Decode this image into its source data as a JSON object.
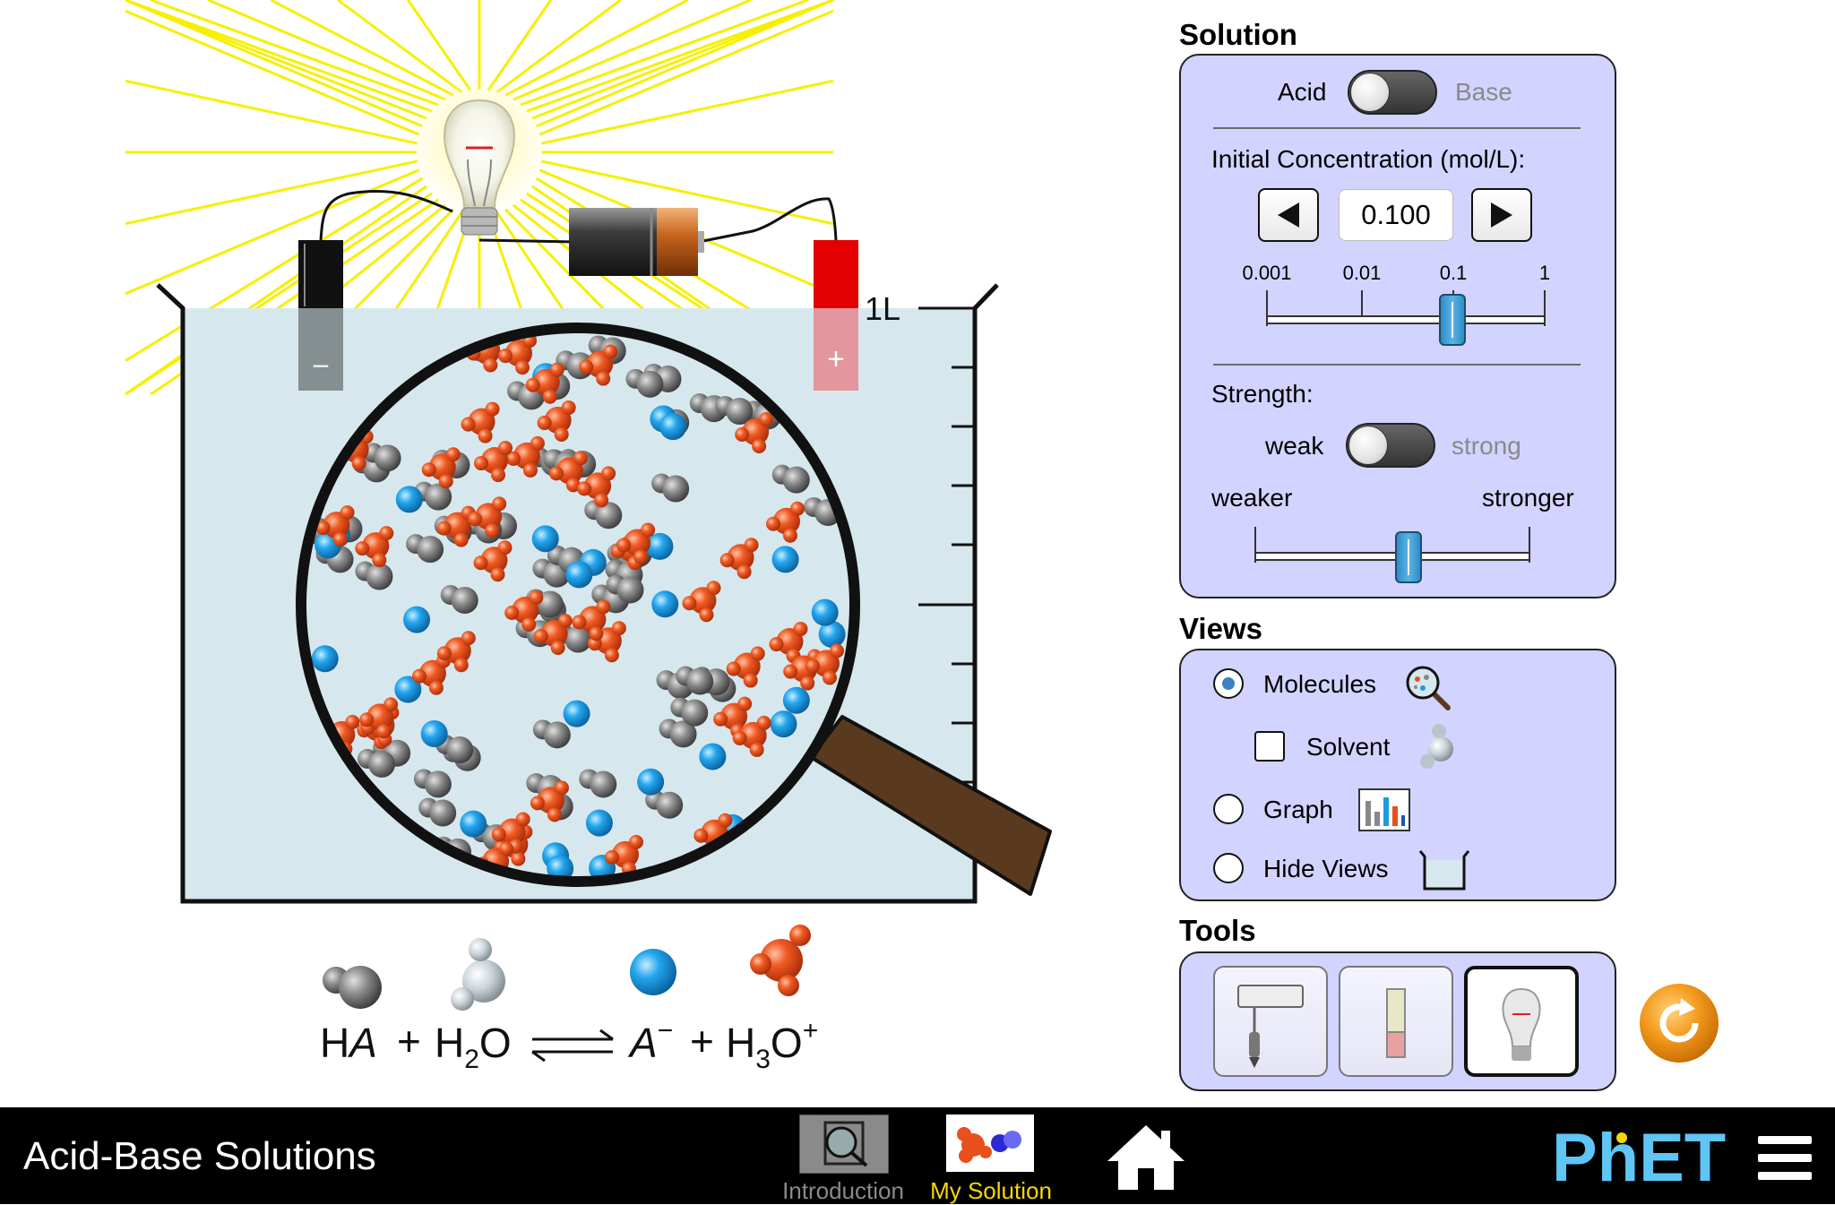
{
  "app": {
    "title": "Acid-Base Solutions",
    "brand": "PhET"
  },
  "beaker": {
    "volume_label": "1L",
    "neg_label": "−",
    "pos_label": "+"
  },
  "equation": {
    "reactant1": "HA",
    "plus1": "+",
    "reactant2": "H2O",
    "product1": "A−",
    "plus2": "+",
    "product2": "H3O+"
  },
  "solution": {
    "title": "Solution",
    "type_toggle": {
      "left": "Acid",
      "right": "Base",
      "value": "Acid"
    },
    "concentration": {
      "label": "Initial Concentration (mol/L):",
      "value": "0.100",
      "ticks": [
        "0.001",
        "0.01",
        "0.1",
        "1"
      ],
      "slider_fraction": 0.667
    },
    "strength": {
      "label": "Strength:",
      "toggle": {
        "left": "weak",
        "right": "strong",
        "value": "weak"
      },
      "min_label": "weaker",
      "max_label": "stronger",
      "slider_fraction": 0.56
    }
  },
  "views": {
    "title": "Views",
    "molecules": {
      "label": "Molecules",
      "selected": true
    },
    "solvent": {
      "label": "Solvent",
      "checked": false
    },
    "graph": {
      "label": "Graph",
      "selected": false
    },
    "hide_views": {
      "label": "Hide Views",
      "selected": false
    }
  },
  "tools": {
    "title": "Tools",
    "items": [
      {
        "name": "pH meter",
        "icon": "ph-meter-icon",
        "selected": false
      },
      {
        "name": "pH paper",
        "icon": "ph-paper-icon",
        "selected": false
      },
      {
        "name": "conductivity tester",
        "icon": "light-bulb-icon",
        "selected": true
      }
    ]
  },
  "nav": {
    "tabs": [
      {
        "label": "Introduction",
        "active": false
      },
      {
        "label": "My Solution",
        "active": true
      }
    ]
  },
  "colors": {
    "panel": "#d3d3ff",
    "water": "#d6e8ee",
    "acid_molecule": "#e8501c",
    "ion_blue": "#1e9be0",
    "solvent_gray": "#6e6e6e",
    "active_tab": "#f5d800",
    "reset_orange": "#f39a1e"
  }
}
